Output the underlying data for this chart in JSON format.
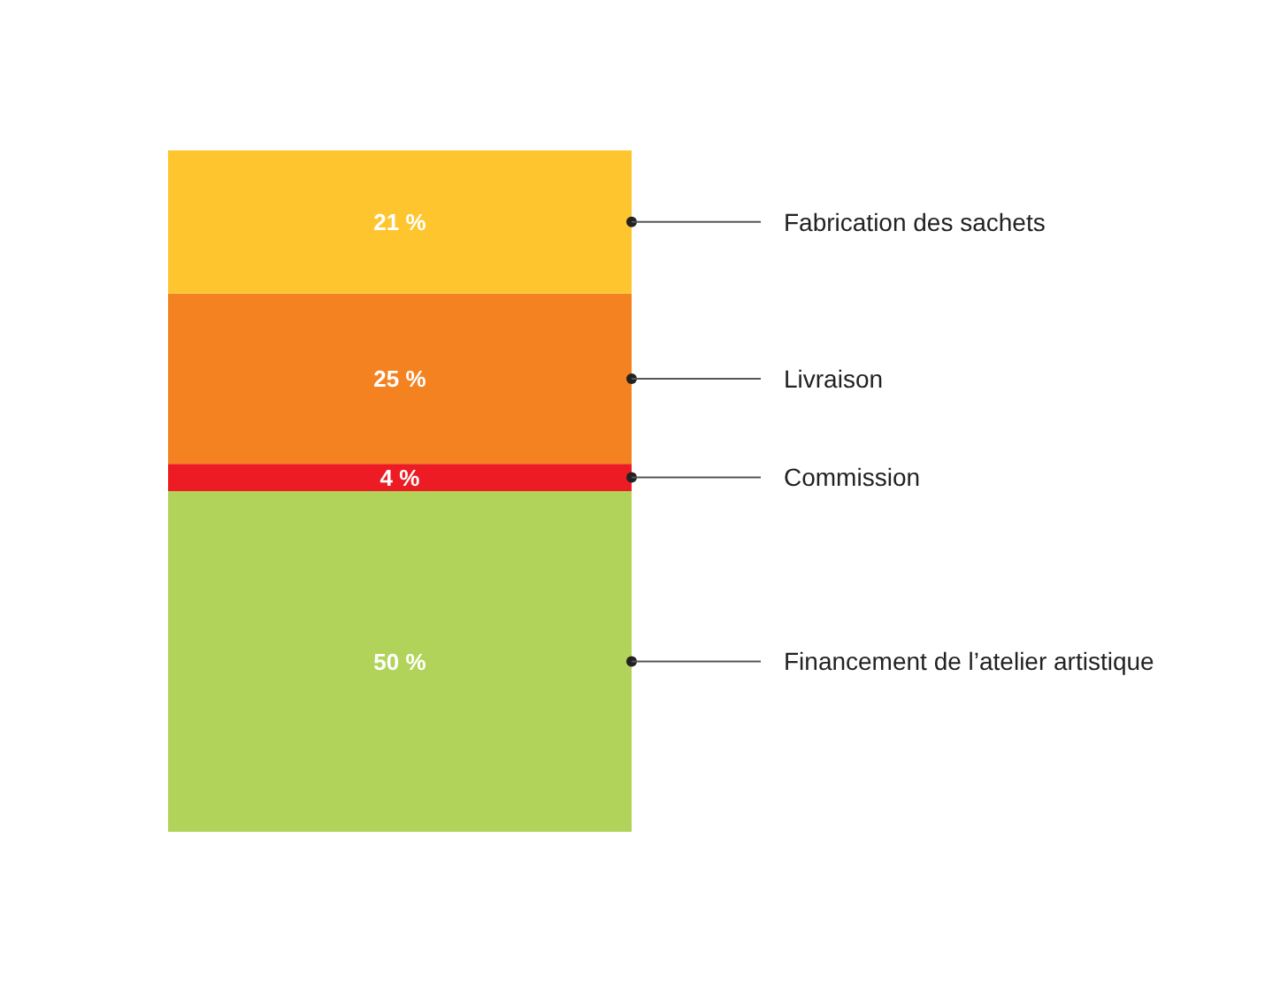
{
  "chart_data": {
    "type": "bar",
    "stacked": true,
    "categories": [
      null
    ],
    "ylim": [
      0,
      100
    ],
    "series": [
      {
        "name": "Financement de l’atelier artistique",
        "color": "#b1d35a",
        "values": [
          50
        ],
        "value_labels": [
          "50 %"
        ]
      },
      {
        "name": "Commission",
        "color": "#ed1c24",
        "values": [
          4
        ],
        "value_labels": [
          "4 %"
        ]
      },
      {
        "name": "Livraison",
        "color": "#f58220",
        "values": [
          25
        ],
        "value_labels": [
          "25 %"
        ]
      },
      {
        "name": "Fabrication des sachets",
        "color": "#fec52e",
        "values": [
          21
        ],
        "value_labels": [
          "21 %"
        ]
      }
    ]
  }
}
